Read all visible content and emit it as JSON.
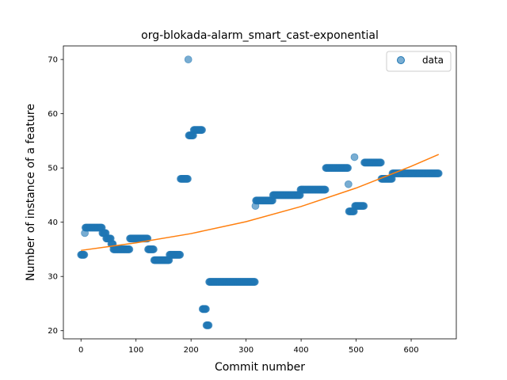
{
  "chart_data": {
    "type": "scatter",
    "title": "org-blokada-alarm_smart_cast-exponential",
    "xlabel": "Commit number",
    "ylabel": "Number of instance of a feature",
    "xlim": [
      -32,
      682
    ],
    "ylim": [
      18.5,
      72.5
    ],
    "xticks": [
      0,
      100,
      200,
      300,
      400,
      500,
      600
    ],
    "yticks": [
      20,
      30,
      40,
      50,
      60,
      70
    ],
    "grid": false,
    "legend": {
      "location": "top-right",
      "entries": [
        "data"
      ]
    },
    "colors": {
      "data": "#1f77b4",
      "fit": "#ff7f0e"
    },
    "series": [
      {
        "name": "data",
        "kind": "scatter",
        "segments": [
          {
            "x_start": 0,
            "x_end": 6,
            "y": 34
          },
          {
            "x_start": 7,
            "x_end": 7,
            "y": 38
          },
          {
            "x_start": 8,
            "x_end": 38,
            "y": 39
          },
          {
            "x_start": 39,
            "x_end": 45,
            "y": 38
          },
          {
            "x_start": 46,
            "x_end": 54,
            "y": 37
          },
          {
            "x_start": 55,
            "x_end": 58,
            "y": 36
          },
          {
            "x_start": 59,
            "x_end": 88,
            "y": 35
          },
          {
            "x_start": 89,
            "x_end": 121,
            "y": 37
          },
          {
            "x_start": 122,
            "x_end": 132,
            "y": 35
          },
          {
            "x_start": 133,
            "x_end": 160,
            "y": 33
          },
          {
            "x_start": 161,
            "x_end": 180,
            "y": 34
          },
          {
            "x_start": 181,
            "x_end": 194,
            "y": 48
          },
          {
            "x_start": 195,
            "x_end": 195,
            "y": 70
          },
          {
            "x_start": 196,
            "x_end": 204,
            "y": 56
          },
          {
            "x_start": 205,
            "x_end": 220,
            "y": 57
          },
          {
            "x_start": 221,
            "x_end": 227,
            "y": 24
          },
          {
            "x_start": 228,
            "x_end": 232,
            "y": 21
          },
          {
            "x_start": 233,
            "x_end": 316,
            "y": 29
          },
          {
            "x_start": 317,
            "x_end": 317,
            "y": 43
          },
          {
            "x_start": 318,
            "x_end": 348,
            "y": 44
          },
          {
            "x_start": 349,
            "x_end": 398,
            "y": 45
          },
          {
            "x_start": 399,
            "x_end": 444,
            "y": 46
          },
          {
            "x_start": 445,
            "x_end": 485,
            "y": 50
          },
          {
            "x_start": 486,
            "x_end": 486,
            "y": 47
          },
          {
            "x_start": 487,
            "x_end": 496,
            "y": 42
          },
          {
            "x_start": 497,
            "x_end": 497,
            "y": 52
          },
          {
            "x_start": 498,
            "x_end": 514,
            "y": 43
          },
          {
            "x_start": 515,
            "x_end": 545,
            "y": 51
          },
          {
            "x_start": 546,
            "x_end": 565,
            "y": 48
          },
          {
            "x_start": 566,
            "x_end": 650,
            "y": 49
          }
        ]
      },
      {
        "name": "",
        "kind": "line",
        "x": [
          0,
          100,
          200,
          300,
          400,
          500,
          600,
          650
        ],
        "y": [
          34.8,
          36.2,
          37.9,
          40.1,
          42.9,
          46.3,
          50.3,
          52.5
        ]
      }
    ]
  }
}
